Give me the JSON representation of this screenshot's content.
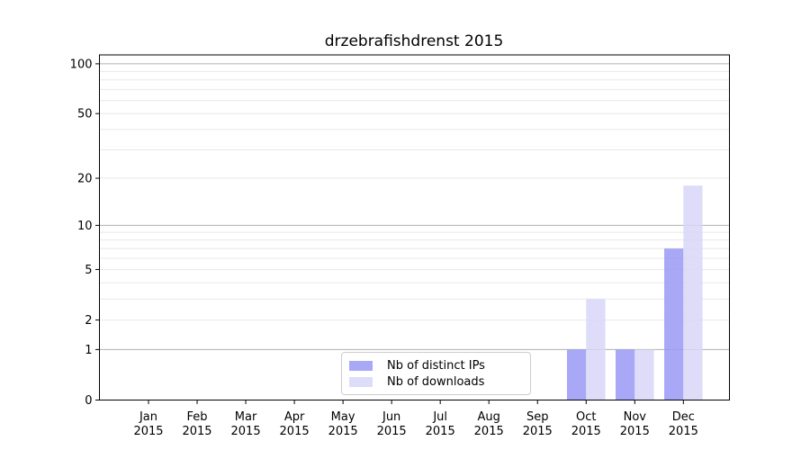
{
  "chart_data": {
    "type": "bar",
    "title": "drzebrafishdrenst 2015",
    "x_tick_year": "2015",
    "categories": [
      "Jan",
      "Feb",
      "Mar",
      "Apr",
      "May",
      "Jun",
      "Jul",
      "Aug",
      "Sep",
      "Oct",
      "Nov",
      "Dec"
    ],
    "series": [
      {
        "name": "Nb of distinct IPs",
        "color": "#9999f4",
        "values": [
          0,
          0,
          0,
          0,
          0,
          0,
          0,
          0,
          0,
          1,
          1,
          7
        ]
      },
      {
        "name": "Nb of downloads",
        "color": "#d7d7f8",
        "values": [
          0,
          0,
          0,
          0,
          0,
          0,
          0,
          0,
          0,
          3,
          1,
          18
        ]
      }
    ],
    "bar_opacity": 0.85,
    "yscale": "log1p",
    "ylim": [
      0,
      113
    ],
    "y_tick_values": [
      0,
      1,
      2,
      5,
      10,
      20,
      50,
      100
    ],
    "y_major_gridline_values": [
      1,
      10,
      100
    ],
    "y_minor_gridline_values": [
      2,
      3,
      4,
      5,
      6,
      7,
      8,
      9,
      20,
      30,
      40,
      50,
      60,
      70,
      80,
      90
    ],
    "grid": true,
    "legend": {
      "position": "lower center",
      "border_color": "#cccccc"
    },
    "colors": {
      "major_grid": "#b0b0b0",
      "minor_grid": "#e8e8e8",
      "spine": "#000000",
      "text": "#000000",
      "background": "#ffffff"
    }
  }
}
